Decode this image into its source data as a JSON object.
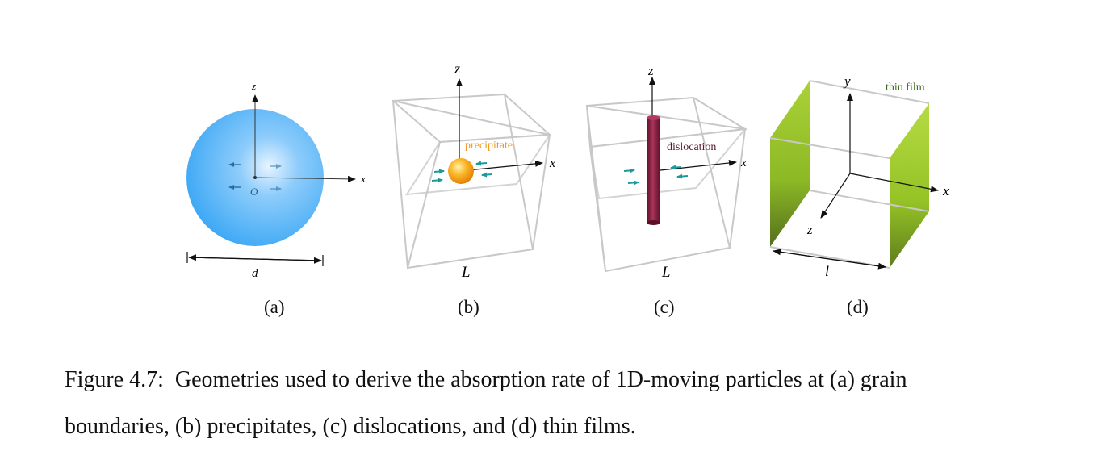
{
  "panel_a": {
    "axis_z": "z",
    "axis_x": "x",
    "origin": "O",
    "dimension": "d",
    "label": "(a)"
  },
  "panel_b": {
    "axis_z": "z",
    "axis_x": "x",
    "annotation": "precipitate",
    "dimension": "L",
    "label": "(b)"
  },
  "panel_c": {
    "axis_z": "z",
    "axis_x": "x",
    "annotation": "dislocation",
    "dimension": "L",
    "label": "(c)"
  },
  "panel_d": {
    "axis_y": "y",
    "axis_x": "x",
    "axis_z": "z",
    "annotation": "thin film",
    "dimension": "l",
    "label": "(d)"
  },
  "caption": {
    "line1": "Figure 4.7:  Geometries used to derive the absorption rate of 1D-moving particles at (a) grain",
    "line2": "boundaries, (b) precipitates, (c) dislocations, and (d) thin films."
  },
  "colors": {
    "sphere": "#3fa9f5",
    "precipitate": "#f7a21b",
    "dislocation": "#8b1e3f",
    "thin_film": "#8fbf1a",
    "arrows": "#1aa3a3",
    "box_edges": "#c8c8c8"
  }
}
